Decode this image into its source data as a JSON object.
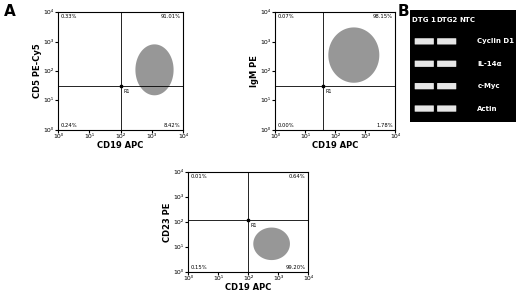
{
  "panel_labels": [
    "A",
    "B"
  ],
  "chart_data": [
    {
      "type": "scatter",
      "x_label": "CD19 APC",
      "y_label": "CD5 PE-Cy5",
      "xlim": [
        1,
        10000
      ],
      "ylim": [
        1,
        10000
      ],
      "xticks": [
        {
          "value": 1,
          "label": "10⁰"
        },
        {
          "value": 10,
          "label": "10¹"
        },
        {
          "value": 100,
          "label": "10²"
        },
        {
          "value": 1000,
          "label": "10³"
        },
        {
          "value": 10000,
          "label": "10⁴"
        }
      ],
      "yticks": [
        {
          "value": 1,
          "label": "10⁰"
        },
        {
          "value": 10,
          "label": "10¹"
        },
        {
          "value": 100,
          "label": "10²"
        },
        {
          "value": 1000,
          "label": "10³"
        },
        {
          "value": 10000,
          "label": "10⁴"
        }
      ],
      "log": true,
      "color": "#8c8c8c",
      "population": {
        "x_range": [
          300,
          5000
        ],
        "y_range": [
          15,
          800
        ]
      },
      "gate_x": 100,
      "gate_y": 30,
      "gate_label": "R1",
      "quadrants": {
        "upper_left": "0.33%",
        "upper_right": "91.01%",
        "lower_left": "0.24%",
        "lower_right": "8.42%"
      }
    },
    {
      "type": "scatter",
      "x_label": "CD19 APC",
      "y_label": "IgM PE",
      "xlim": [
        1,
        10000
      ],
      "ylim": [
        1,
        10000
      ],
      "xticks": [
        {
          "value": 1,
          "label": "10⁰"
        },
        {
          "value": 10,
          "label": "10¹"
        },
        {
          "value": 100,
          "label": "10²"
        },
        {
          "value": 1000,
          "label": "10³"
        },
        {
          "value": 10000,
          "label": "10⁴"
        }
      ],
      "yticks": [
        {
          "value": 1,
          "label": "10⁰"
        },
        {
          "value": 10,
          "label": "10¹"
        },
        {
          "value": 100,
          "label": "10²"
        },
        {
          "value": 1000,
          "label": "10³"
        },
        {
          "value": 10000,
          "label": "10⁴"
        }
      ],
      "log": true,
      "color": "#8c8c8c",
      "population": {
        "x_range": [
          60,
          3000
        ],
        "y_range": [
          40,
          3000
        ]
      },
      "gate_x": 40,
      "gate_y": 30,
      "gate_label": "R1",
      "quadrants": {
        "upper_left": "0.07%",
        "upper_right": "98.15%",
        "lower_left": "0.00%",
        "lower_right": "1.78%"
      }
    },
    {
      "type": "scatter",
      "x_label": "CD19 APC",
      "y_label": "CD23 PE",
      "xlim": [
        1,
        10000
      ],
      "ylim": [
        1,
        10000
      ],
      "xticks": [
        {
          "value": 1,
          "label": "10⁰"
        },
        {
          "value": 10,
          "label": "10¹"
        },
        {
          "value": 100,
          "label": "10²"
        },
        {
          "value": 1000,
          "label": "10³"
        },
        {
          "value": 10000,
          "label": "10⁴"
        }
      ],
      "yticks": [
        {
          "value": 1,
          "label": "10⁰"
        },
        {
          "value": 10,
          "label": "10¹"
        },
        {
          "value": 100,
          "label": "10²"
        },
        {
          "value": 1000,
          "label": "10³"
        },
        {
          "value": 10000,
          "label": "10⁴"
        }
      ],
      "log": true,
      "color": "#8c8c8c",
      "population": {
        "x_range": [
          150,
          2500
        ],
        "y_range": [
          3,
          60
        ]
      },
      "gate_x": 100,
      "gate_y": 120,
      "gate_label": "R1",
      "quadrants": {
        "upper_left": "0.01%",
        "upper_right": "0.64%",
        "lower_left": "0.15%",
        "lower_right": "99.20%"
      }
    }
  ],
  "gel": {
    "lanes": [
      "DTG 1",
      "DTG2",
      "NTC"
    ],
    "rows": [
      {
        "label": "Cyclin D1",
        "bands": [
          true,
          true,
          false
        ]
      },
      {
        "label": "IL-14α",
        "bands": [
          true,
          true,
          false
        ]
      },
      {
        "label": "c-Myc",
        "bands": [
          true,
          true,
          false
        ]
      },
      {
        "label": "Actin",
        "bands": [
          true,
          true,
          false
        ]
      }
    ]
  }
}
